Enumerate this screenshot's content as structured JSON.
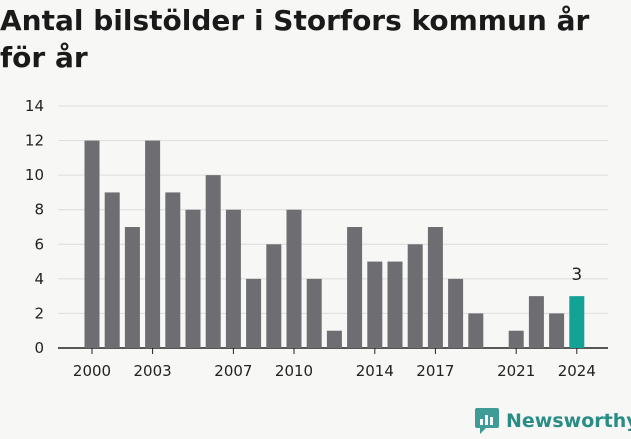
{
  "chart_data": {
    "type": "bar",
    "title": "Antal bilstölder i Storfors kommun år för år",
    "xlabel": "",
    "ylabel": "",
    "ylim": [
      0,
      14
    ],
    "yticks": [
      0,
      2,
      4,
      6,
      8,
      10,
      12,
      14
    ],
    "grid": true,
    "categories": [
      2000,
      2001,
      2002,
      2003,
      2004,
      2005,
      2006,
      2007,
      2008,
      2009,
      2010,
      2011,
      2012,
      2013,
      2014,
      2015,
      2016,
      2017,
      2018,
      2019,
      2020,
      2021,
      2022,
      2023,
      2024
    ],
    "values": [
      12,
      9,
      7,
      12,
      9,
      8,
      10,
      8,
      4,
      6,
      8,
      4,
      1,
      7,
      5,
      5,
      6,
      7,
      4,
      2,
      0,
      1,
      3,
      2,
      3
    ],
    "xtick_labels": [
      "2000",
      "2003",
      "2007",
      "2010",
      "2014",
      "2017",
      "2021",
      "2024"
    ],
    "highlight": {
      "category": 2024,
      "label": "3"
    },
    "colors": {
      "bar": "#6e6d72",
      "highlight": "#12a394",
      "grid": "#dcdcdc",
      "axis": "#222222"
    }
  },
  "brand": {
    "name": "Newsworthy",
    "icon": "newsworthy-logo-icon",
    "color": "#2a8c86"
  }
}
